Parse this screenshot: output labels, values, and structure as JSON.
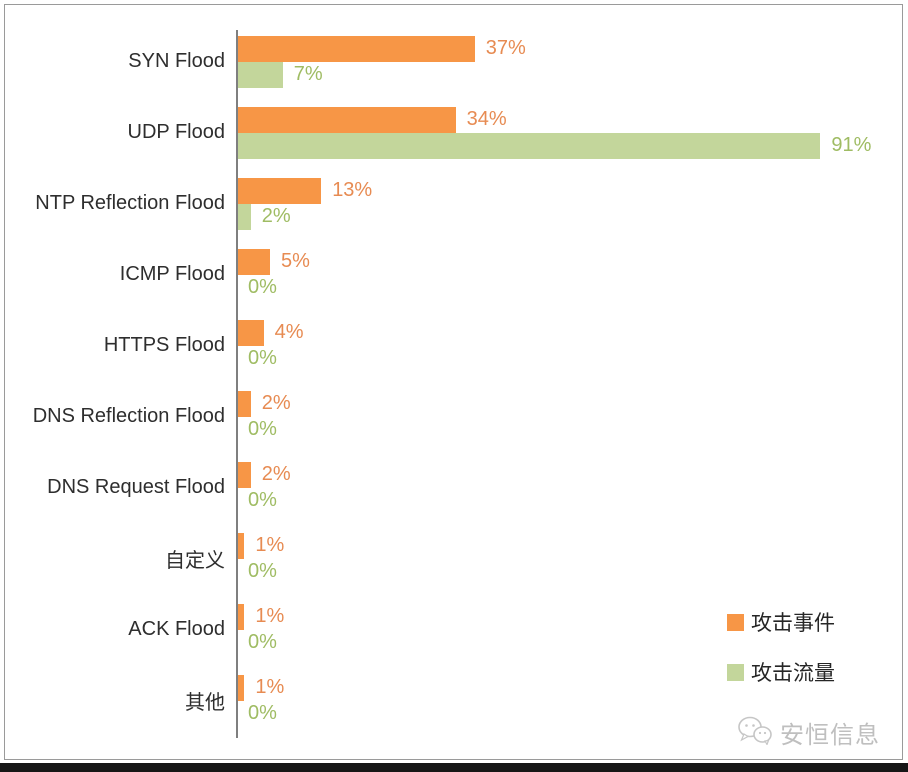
{
  "chart_data": {
    "type": "bar",
    "orientation": "horizontal",
    "title": "",
    "xlabel": "",
    "ylabel": "",
    "xlim": [
      0,
      100
    ],
    "grid": false,
    "legend_position": "right-bottom",
    "value_suffix": "%",
    "categories": [
      "SYN Flood",
      "UDP Flood",
      "NTP Reflection Flood",
      "ICMP Flood",
      "HTTPS Flood",
      "DNS Reflection Flood",
      "DNS Request Flood",
      "自定义",
      "ACK Flood",
      "其他"
    ],
    "series": [
      {
        "key": "attack-events",
        "name": "攻击事件",
        "color": "#F79646",
        "label_color": "#E78B52",
        "values": [
          37,
          34,
          13,
          5,
          4,
          2,
          2,
          1,
          1,
          1
        ]
      },
      {
        "key": "attack-traffic",
        "name": "攻击流量",
        "color": "#C3D69B",
        "label_color": "#9FBC63",
        "values": [
          7,
          91,
          2,
          0,
          0,
          0,
          0,
          0,
          0,
          0
        ]
      }
    ]
  },
  "colors": {
    "axis": "#7f7f7f",
    "category_text": "#2e2e2e",
    "frame_border": "#9a9a9a",
    "bottom_bar": "#161616",
    "watermark": "#bfbfbf"
  },
  "watermark": {
    "text": "安恒信息"
  }
}
